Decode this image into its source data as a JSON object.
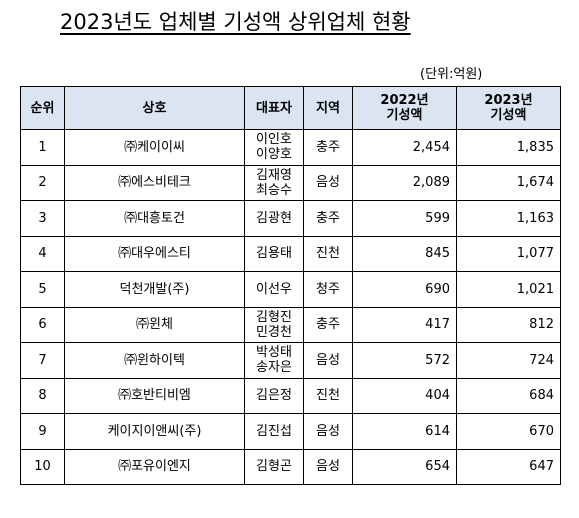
{
  "header": {
    "title": "2023년도 업체별 기성액 상위업체 현황",
    "unit": "(단위:억원)"
  },
  "table": {
    "columns": [
      [
        "순위"
      ],
      [
        "상호"
      ],
      [
        "대표자"
      ],
      [
        "지역"
      ],
      [
        "2022년",
        "기성액"
      ],
      [
        "2023년",
        "기성액"
      ]
    ],
    "rows": [
      [
        "1",
        "㈜케이이씨",
        [
          "이인호",
          "이양호"
        ],
        "충주",
        "2,454",
        "1,835"
      ],
      [
        "2",
        "㈜에스비테크",
        [
          "김재영",
          "최승수"
        ],
        "음성",
        "2,089",
        "1,674"
      ],
      [
        "3",
        "㈜대흥토건",
        [
          "김광현"
        ],
        "충주",
        "599",
        "1,163"
      ],
      [
        "4",
        "㈜대우에스티",
        [
          "김용태"
        ],
        "진천",
        "845",
        "1,077"
      ],
      [
        "5",
        "덕천개발(주)",
        [
          "이선우"
        ],
        "청주",
        "690",
        "1,021"
      ],
      [
        "6",
        "㈜윈체",
        [
          "김형진",
          "민경천"
        ],
        "충주",
        "417",
        "812"
      ],
      [
        "7",
        "㈜윈하이텍",
        [
          "박성태",
          "송자은"
        ],
        "음성",
        "572",
        "724"
      ],
      [
        "8",
        "㈜호반티비엠",
        [
          "김은정"
        ],
        "진천",
        "404",
        "684"
      ],
      [
        "9",
        "케이지이앤씨(주)",
        [
          "김진섭"
        ],
        "음성",
        "614",
        "670"
      ],
      [
        "10",
        "㈜포유이엔지",
        [
          "김형곤"
        ],
        "음성",
        "654",
        "647"
      ]
    ]
  }
}
